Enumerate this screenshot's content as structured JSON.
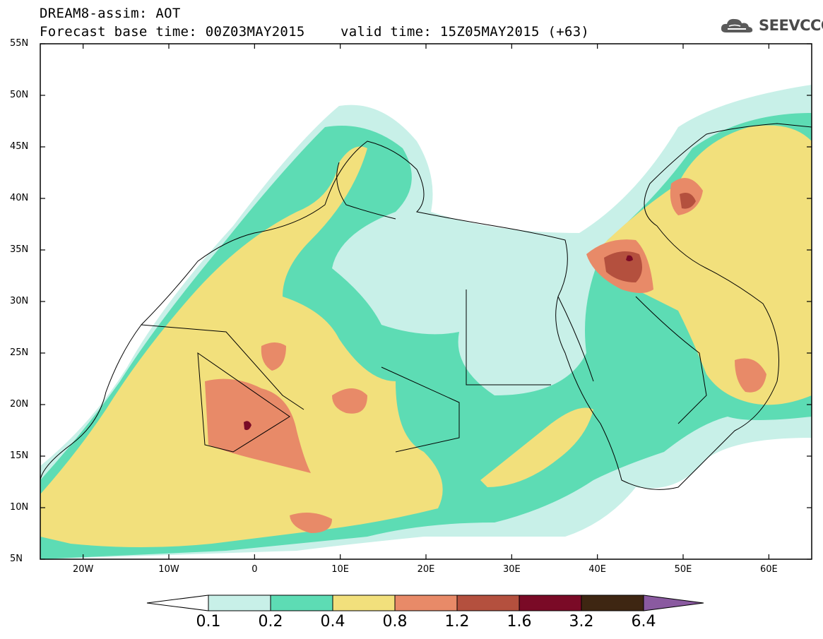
{
  "header": {
    "line1": "DREAM8-assim: AOT",
    "line2": "Forecast base time: 00Z03MAY2015",
    "valid": "valid time: 15Z05MAY2015 (+63)",
    "brand": "SEEVCCC",
    "brand_icon": "cloud-icon"
  },
  "map": {
    "variable": "AOT",
    "lat_labels": [
      "55N",
      "50N",
      "45N",
      "40N",
      "35N",
      "30N",
      "25N",
      "20N",
      "15N",
      "10N",
      "5N"
    ],
    "lon_labels": [
      "20W",
      "10W",
      "0",
      "10E",
      "20E",
      "30E",
      "40E",
      "50E",
      "60E"
    ],
    "lat_range": [
      5,
      55
    ],
    "lon_range": [
      -25,
      65
    ]
  },
  "colorbar": {
    "thresholds": [
      "0.1",
      "0.2",
      "0.4",
      "0.8",
      "1.2",
      "1.6",
      "3.2",
      "6.4"
    ],
    "colors": [
      "#ffffff",
      "#c8f0e8",
      "#5ddcb4",
      "#f2e07c",
      "#e88a68",
      "#b4503e",
      "#7a0a26",
      "#3e2612",
      "#8a5aa0"
    ]
  }
}
